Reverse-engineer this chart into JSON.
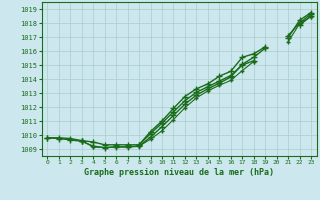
{
  "title": "Graphe pression niveau de la mer (hPa)",
  "xlabel_hours": [
    0,
    1,
    2,
    3,
    4,
    5,
    6,
    7,
    8,
    9,
    10,
    11,
    12,
    13,
    14,
    15,
    16,
    17,
    18,
    19,
    20,
    21,
    22,
    23
  ],
  "ylim": [
    1008.5,
    1019.5
  ],
  "xlim": [
    -0.5,
    23.5
  ],
  "yticks": [
    1009,
    1010,
    1011,
    1012,
    1013,
    1014,
    1015,
    1016,
    1017,
    1018,
    1019
  ],
  "bg_color": "#cce8ee",
  "grid_color": "#aacccc",
  "line_color": "#1a6b1a",
  "line1": [
    1009.8,
    1009.8,
    1009.75,
    1009.6,
    1009.5,
    1009.3,
    1009.3,
    1009.3,
    1009.3,
    1010.25,
    1011.0,
    1011.9,
    1012.75,
    1013.3,
    1013.65,
    1014.2,
    1014.55,
    1015.55,
    1015.8,
    1016.3,
    null,
    1017.1,
    1018.0,
    1018.65
  ],
  "line2": [
    1009.8,
    1009.75,
    1009.65,
    1009.55,
    1009.2,
    1009.1,
    1009.15,
    1009.15,
    1009.2,
    1009.85,
    1010.6,
    1011.4,
    1012.2,
    1012.85,
    1013.3,
    1013.7,
    1014.15,
    1015.05,
    1015.55,
    1016.2,
    null,
    1016.95,
    1018.2,
    1018.75
  ],
  "line3": [
    null,
    null,
    null,
    1009.6,
    null,
    null,
    null,
    null,
    1009.3,
    1010.1,
    1010.85,
    1011.65,
    1012.45,
    1013.05,
    1013.45,
    1013.85,
    1014.25,
    1015.0,
    1015.3,
    null,
    null,
    null,
    1017.85,
    1018.5
  ],
  "line4": [
    null,
    null,
    null,
    1009.6,
    1009.15,
    1009.1,
    1009.15,
    1009.15,
    1009.2,
    1009.7,
    1010.3,
    1011.1,
    1011.95,
    1012.65,
    1013.15,
    1013.55,
    1013.9,
    1014.6,
    1015.25,
    null,
    null,
    1016.65,
    1017.95,
    1018.45
  ]
}
